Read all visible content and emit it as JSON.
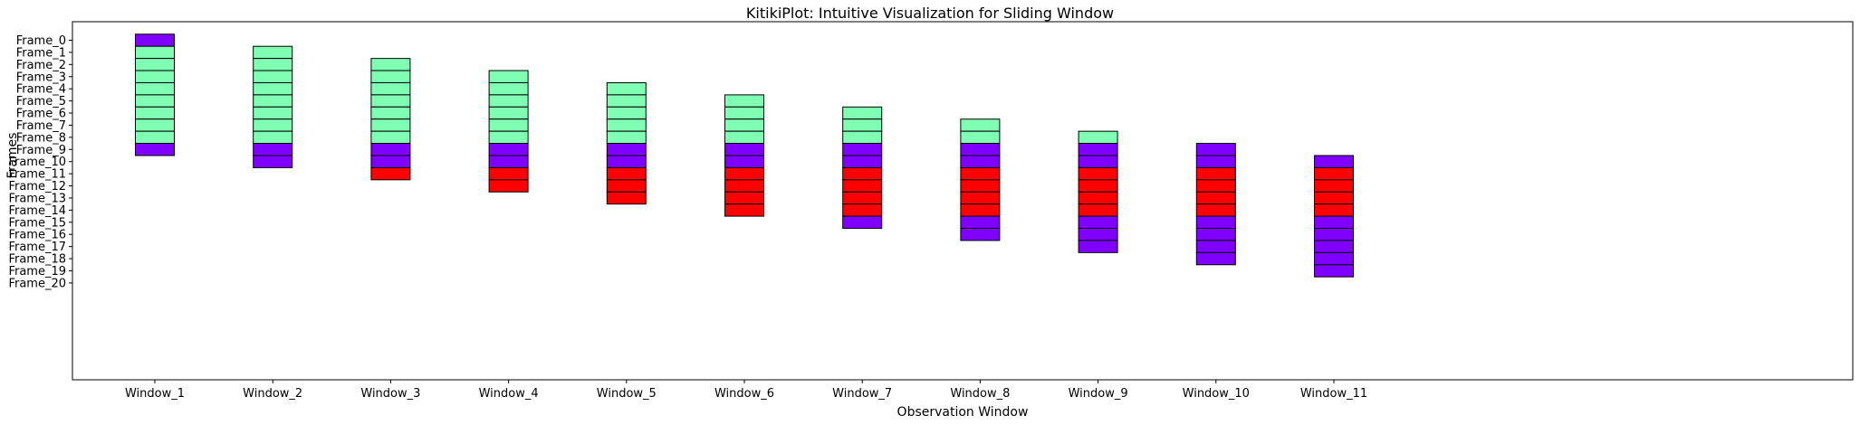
{
  "chart_data": {
    "type": "bar",
    "title": "KitikiPlot: Intuitive Visualization for Sliding Window",
    "xlabel": "Observation Window",
    "ylabel": "Frames",
    "categories": [
      "Window_1",
      "Window_2",
      "Window_3",
      "Window_4",
      "Window_5",
      "Window_6",
      "Window_7",
      "Window_8",
      "Window_9",
      "Window_10",
      "Window_11"
    ],
    "frames": [
      "Frame_0",
      "Frame_1",
      "Frame_2",
      "Frame_3",
      "Frame_4",
      "Frame_5",
      "Frame_6",
      "Frame_7",
      "Frame_8",
      "Frame_9",
      "Frame_10",
      "Frame_11",
      "Frame_12",
      "Frame_13",
      "Frame_14",
      "Frame_15",
      "Frame_16",
      "Frame_17",
      "Frame_18",
      "Frame_19",
      "Frame_20"
    ],
    "colors": {
      "purple": "#8000ff",
      "green": "#80ffb4",
      "red": "#ff0000",
      "edge": "#000000"
    },
    "windows": [
      {
        "start": 0,
        "cells": [
          "purple",
          "green",
          "green",
          "green",
          "green",
          "green",
          "green",
          "green",
          "green",
          "purple"
        ]
      },
      {
        "start": 1,
        "cells": [
          "green",
          "green",
          "green",
          "green",
          "green",
          "green",
          "green",
          "green",
          "purple",
          "purple"
        ]
      },
      {
        "start": 2,
        "cells": [
          "green",
          "green",
          "green",
          "green",
          "green",
          "green",
          "green",
          "purple",
          "purple",
          "red"
        ]
      },
      {
        "start": 3,
        "cells": [
          "green",
          "green",
          "green",
          "green",
          "green",
          "green",
          "purple",
          "purple",
          "red",
          "red"
        ]
      },
      {
        "start": 4,
        "cells": [
          "green",
          "green",
          "green",
          "green",
          "green",
          "purple",
          "purple",
          "red",
          "red",
          "red"
        ]
      },
      {
        "start": 5,
        "cells": [
          "green",
          "green",
          "green",
          "green",
          "purple",
          "purple",
          "red",
          "red",
          "red",
          "red"
        ]
      },
      {
        "start": 6,
        "cells": [
          "green",
          "green",
          "green",
          "purple",
          "purple",
          "red",
          "red",
          "red",
          "red",
          "purple"
        ]
      },
      {
        "start": 7,
        "cells": [
          "green",
          "green",
          "purple",
          "purple",
          "red",
          "red",
          "red",
          "red",
          "purple",
          "purple"
        ]
      },
      {
        "start": 8,
        "cells": [
          "green",
          "purple",
          "purple",
          "red",
          "red",
          "red",
          "red",
          "purple",
          "purple",
          "purple"
        ]
      },
      {
        "start": 9,
        "cells": [
          "purple",
          "purple",
          "red",
          "red",
          "red",
          "red",
          "purple",
          "purple",
          "purple",
          "purple"
        ]
      },
      {
        "start": 10,
        "cells": [
          "purple",
          "red",
          "red",
          "red",
          "red",
          "purple",
          "purple",
          "purple",
          "purple",
          "purple"
        ]
      }
    ]
  }
}
